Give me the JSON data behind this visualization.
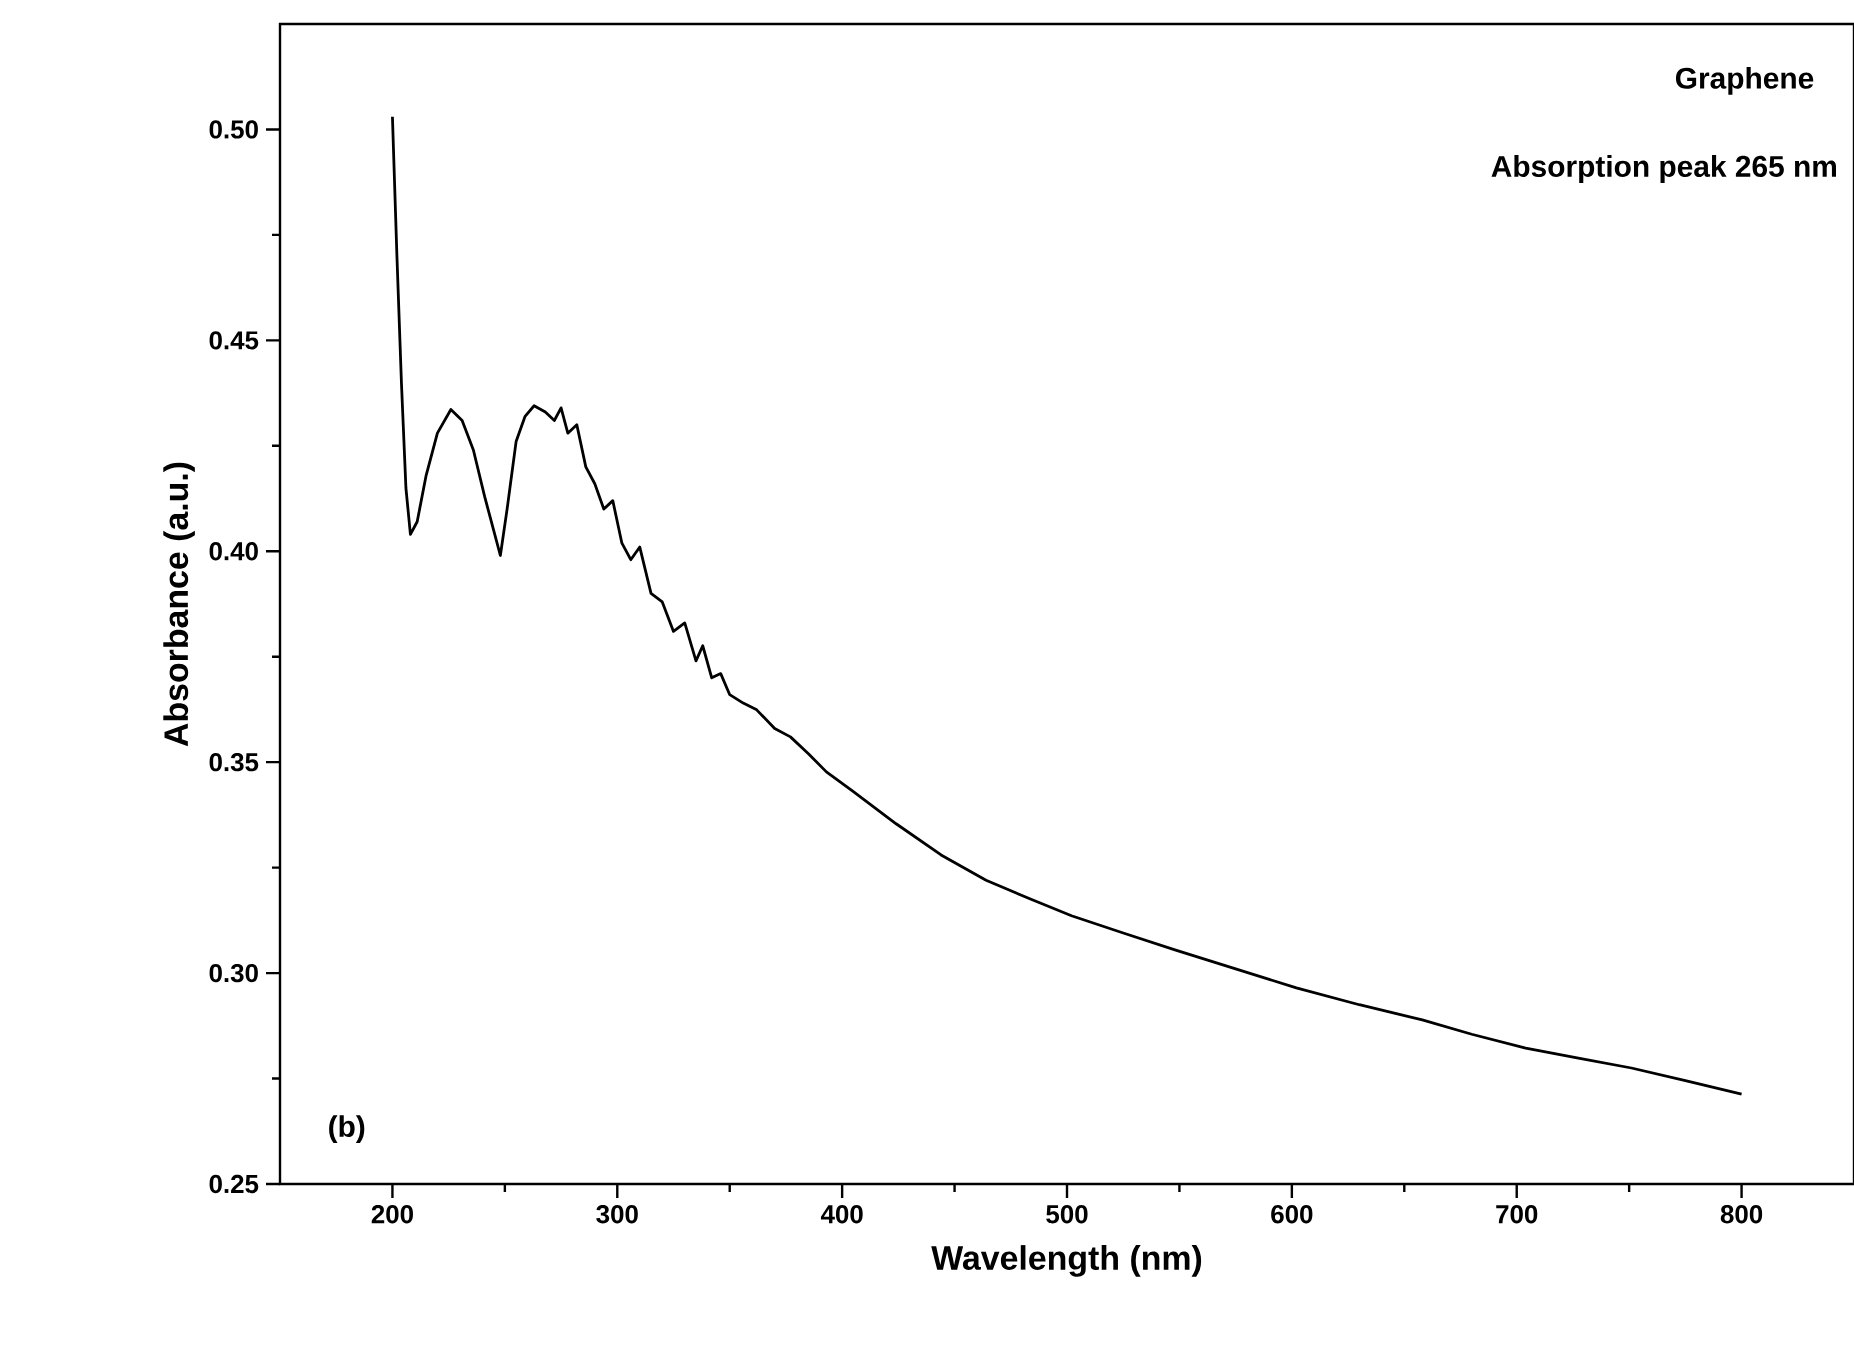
{
  "chart_data": {
    "type": "line",
    "xlabel": "Wavelength (nm)",
    "ylabel": "Absorbance (a.u.)",
    "annotations": [
      "Graphene",
      "Absorption peak 265 nm",
      "(b)"
    ],
    "xlim": [
      150,
      850
    ],
    "ylim": [
      0.25,
      0.525
    ],
    "xticks": [
      200,
      300,
      400,
      500,
      600,
      700,
      800
    ],
    "yticks": [
      0.25,
      {
        "value": 0.3,
        "label": "0.30"
      },
      0.35,
      {
        "value": 0.4,
        "label": "0.40"
      },
      0.45,
      {
        "value": 0.5,
        "label": "0.50"
      }
    ],
    "grid": false,
    "marker": "none",
    "line_style": "solid",
    "series": [
      {
        "color": "#000000",
        "x": [
          200,
          202,
          204,
          206,
          208,
          211,
          215,
          220,
          226,
          231,
          236,
          241,
          245,
          248,
          251,
          255,
          259,
          263,
          268,
          272,
          275,
          278,
          282,
          286,
          290,
          294,
          298,
          302,
          306,
          310,
          315,
          320,
          325,
          330,
          335,
          338,
          342,
          346,
          350,
          356,
          362,
          370,
          377,
          385,
          393,
          405,
          424,
          444,
          464,
          484,
          502,
          525,
          548,
          575,
          602,
          630,
          658,
          680,
          704,
          728,
          751,
          775,
          800
        ],
        "values": [
          0.503,
          0.47,
          0.44,
          0.415,
          0.404,
          0.407,
          0.418,
          0.428,
          0.4336,
          0.431,
          0.424,
          0.413,
          0.405,
          0.399,
          0.41,
          0.426,
          0.432,
          0.4345,
          0.433,
          0.431,
          0.434,
          0.428,
          0.43,
          0.42,
          0.416,
          0.41,
          0.412,
          0.402,
          0.398,
          0.401,
          0.39,
          0.388,
          0.381,
          0.383,
          0.374,
          0.3776,
          0.37,
          0.371,
          0.366,
          0.364,
          0.3624,
          0.358,
          0.356,
          0.352,
          0.3477,
          0.343,
          0.3354,
          0.328,
          0.322,
          0.3175,
          0.3136,
          0.3095,
          0.3055,
          0.301,
          0.2965,
          0.2925,
          0.2889,
          0.2855,
          0.2822,
          0.2798,
          0.2775,
          0.2745,
          0.2713
        ]
      }
    ]
  }
}
